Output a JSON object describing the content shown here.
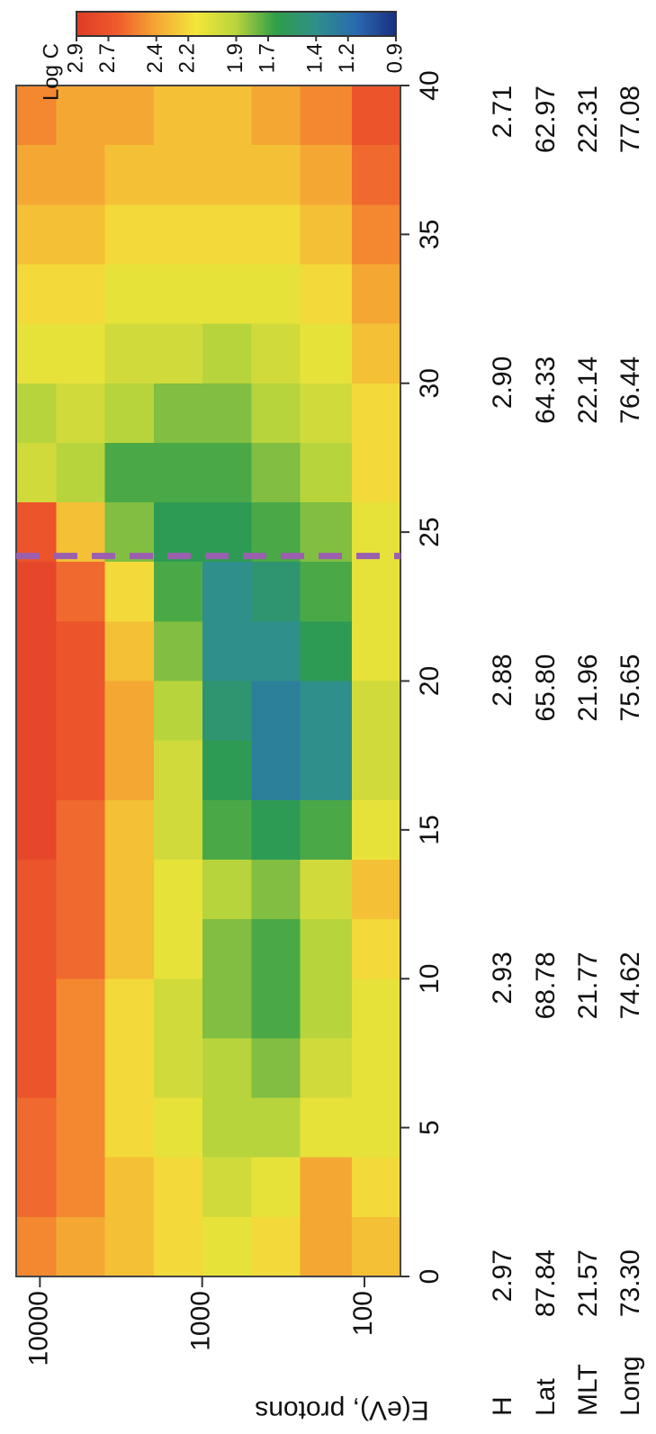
{
  "chart_data": {
    "type": "heatmap",
    "ylabel": "E(eV), protons",
    "zlabel": "Log C",
    "xlim": [
      0,
      40
    ],
    "xticks": [
      0,
      5,
      10,
      15,
      20,
      25,
      30,
      35,
      40
    ],
    "ylim": [
      60,
      14000
    ],
    "yscale": "log",
    "yticks": [
      100,
      1000,
      10000
    ],
    "zlim": [
      0.9,
      2.9
    ],
    "zticks": [
      2.9,
      2.7,
      2.4,
      2.2,
      1.9,
      1.7,
      1.4,
      1.2,
      0.9
    ],
    "colormap": [
      "#1a2f80",
      "#2a6ab0",
      "#2f8f8a",
      "#2e9e48",
      "#b8d43c",
      "#f3e63a",
      "#f5a734",
      "#ef5a2c",
      "#e03a28"
    ],
    "x_bins": [
      0,
      2,
      4,
      6,
      8,
      10,
      12,
      14,
      16,
      18,
      20,
      22,
      24,
      26,
      28,
      30,
      32,
      34,
      36,
      38,
      40
    ],
    "y_bins": [
      60,
      120,
      250,
      500,
      1000,
      2000,
      4000,
      8000,
      14000
    ],
    "values": [
      [
        2.3,
        2.2,
        2.1,
        2.1,
        2.1,
        2.2,
        2.3,
        2.1,
        2.0,
        2.0,
        2.1,
        2.1,
        2.1,
        2.2,
        2.2,
        2.3,
        2.4,
        2.5,
        2.6,
        2.7
      ],
      [
        2.4,
        2.4,
        2.1,
        2.0,
        1.9,
        1.9,
        2.0,
        1.7,
        1.4,
        1.4,
        1.6,
        1.7,
        1.8,
        1.9,
        2.0,
        2.1,
        2.2,
        2.3,
        2.4,
        2.5
      ],
      [
        2.2,
        2.1,
        1.9,
        1.8,
        1.7,
        1.7,
        1.8,
        1.6,
        1.3,
        1.3,
        1.4,
        1.5,
        1.7,
        1.8,
        1.9,
        2.0,
        2.1,
        2.2,
        2.3,
        2.4
      ],
      [
        2.1,
        2.0,
        1.9,
        1.9,
        1.8,
        1.8,
        1.9,
        1.7,
        1.6,
        1.5,
        1.4,
        1.4,
        1.6,
        1.7,
        1.8,
        1.9,
        2.1,
        2.2,
        2.3,
        2.3
      ],
      [
        2.2,
        2.2,
        2.1,
        2.0,
        2.0,
        2.1,
        2.1,
        2.0,
        2.0,
        1.9,
        1.8,
        1.7,
        1.6,
        1.7,
        1.8,
        2.0,
        2.1,
        2.2,
        2.3,
        2.3
      ],
      [
        2.3,
        2.3,
        2.2,
        2.2,
        2.2,
        2.3,
        2.3,
        2.3,
        2.4,
        2.4,
        2.3,
        2.2,
        1.8,
        1.7,
        1.9,
        2.0,
        2.1,
        2.2,
        2.3,
        2.4
      ],
      [
        2.4,
        2.5,
        2.5,
        2.5,
        2.5,
        2.6,
        2.6,
        2.6,
        2.7,
        2.7,
        2.7,
        2.6,
        2.3,
        1.9,
        2.0,
        2.1,
        2.2,
        2.3,
        2.4,
        2.4
      ],
      [
        2.5,
        2.6,
        2.6,
        2.7,
        2.7,
        2.7,
        2.7,
        2.8,
        2.8,
        2.8,
        2.8,
        2.8,
        2.7,
        2.0,
        1.9,
        2.1,
        2.2,
        2.3,
        2.4,
        2.5
      ]
    ],
    "reference_lines": [
      {
        "x": 24.2,
        "color": "#9b5fb0"
      }
    ],
    "table": {
      "row_labels": [
        "H",
        "Lat",
        "MLT",
        "Long"
      ],
      "x": [
        0,
        10,
        20,
        30,
        40
      ],
      "cells": [
        [
          "2.97",
          "2.93",
          "2.88",
          "2.90",
          "2.71"
        ],
        [
          "87.84",
          "68.78",
          "65.80",
          "64.33",
          "62.97"
        ],
        [
          "21.57",
          "21.77",
          "21.96",
          "22.14",
          "22.31"
        ],
        [
          "73.30",
          "74.62",
          "75.65",
          "76.44",
          "77.08"
        ]
      ]
    }
  }
}
